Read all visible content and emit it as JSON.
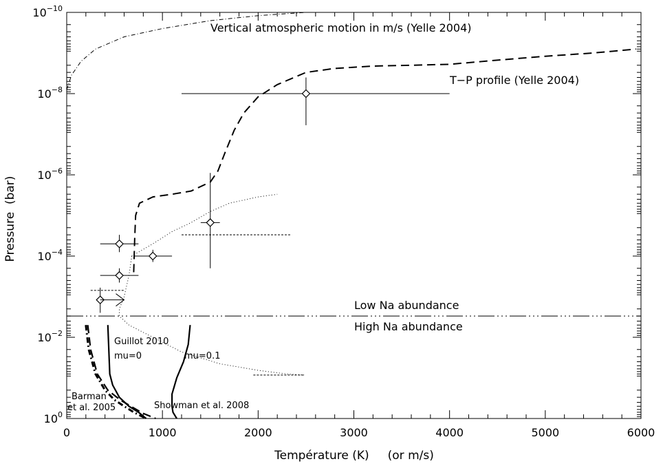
{
  "chart_data": {
    "type": "line",
    "xlabel": "Température (K)     (or m/s)",
    "ylabel": "Pressure  (bar)",
    "xlim": [
      0,
      6000
    ],
    "ylim": [
      1e-10,
      1
    ],
    "y_scale": "log",
    "y_inverted": true,
    "grid": false,
    "x_ticks": [
      "0",
      "1000",
      "2000",
      "3000",
      "4000",
      "5000",
      "6000"
    ],
    "y_ticks": [
      {
        "base": "10",
        "exp": "−10",
        "value": 1e-10
      },
      {
        "base": "10",
        "exp": "−8",
        "value": 1e-08
      },
      {
        "base": "10",
        "exp": "−6",
        "value": 1e-06
      },
      {
        "base": "10",
        "exp": "−4",
        "value": 0.0001
      },
      {
        "base": "10",
        "exp": "−2",
        "value": 0.01
      },
      {
        "base": "10",
        "exp": "0",
        "value": 1
      }
    ],
    "annotations": {
      "vertical_motion": "Vertical atmospheric motion in m/s (Yelle 2004)",
      "tp_profile": "T−P profile (Yelle 2004)",
      "low_na": "Low Na abundance",
      "high_na": "High Na abundance",
      "guillot": "Guillot 2010",
      "mu0": "mu=0",
      "mu01": "mu=0.1",
      "barman_1": "Barman",
      "barman_2": "et al. 2005",
      "showman": "Showman et al. 2008"
    },
    "series": [
      {
        "key": "vertical_motion",
        "style": "dashdot-thin",
        "points": [
          [
            0,
            8e-09
          ],
          [
            50,
            3.5e-09
          ],
          [
            150,
            1.6e-09
          ],
          [
            300,
            8e-10
          ],
          [
            600,
            4e-10
          ],
          [
            1000,
            2.5e-10
          ],
          [
            1500,
            1.6e-10
          ],
          [
            2000,
            1.2e-10
          ],
          [
            2500,
            1e-10
          ]
        ]
      },
      {
        "key": "tp_profile",
        "style": "dashed",
        "points": [
          [
            700,
            0.00025
          ],
          [
            710,
            4e-05
          ],
          [
            720,
            1e-05
          ],
          [
            760,
            5e-06
          ],
          [
            900,
            3.5e-06
          ],
          [
            1100,
            3e-06
          ],
          [
            1300,
            2.5e-06
          ],
          [
            1500,
            1.5e-06
          ],
          [
            1580,
            8e-07
          ],
          [
            1650,
            3e-07
          ],
          [
            1750,
            8e-08
          ],
          [
            1850,
            3e-08
          ],
          [
            2000,
            1.2e-08
          ],
          [
            2200,
            6e-09
          ],
          [
            2500,
            3e-09
          ],
          [
            2800,
            2.4e-09
          ],
          [
            3200,
            2.1e-09
          ],
          [
            3600,
            2e-09
          ],
          [
            4000,
            1.9e-09
          ],
          [
            4500,
            1.5e-09
          ],
          [
            5000,
            1.2e-09
          ],
          [
            5500,
            1e-09
          ],
          [
            5950,
            8e-10
          ]
        ]
      },
      {
        "key": "dotted_profile",
        "style": "dotted",
        "points": [
          [
            680,
            0.0001
          ],
          [
            650,
            0.0003
          ],
          [
            600,
            0.001
          ],
          [
            550,
            0.002
          ],
          [
            550,
            0.003
          ],
          [
            650,
            0.005
          ],
          [
            900,
            0.01
          ],
          [
            1200,
            0.023
          ],
          [
            1600,
            0.045
          ],
          [
            2000,
            0.065
          ],
          [
            2300,
            0.08
          ],
          [
            2480,
            0.085
          ]
        ]
      },
      {
        "key": "dotted_upper",
        "style": "dotted",
        "points": [
          [
            680,
            0.0001
          ],
          [
            900,
            5e-05
          ],
          [
            1100,
            2.5e-05
          ],
          [
            1300,
            1.5e-05
          ],
          [
            1500,
            8e-06
          ],
          [
            1700,
            5e-06
          ],
          [
            2000,
            3.5e-06
          ],
          [
            2200,
            3e-06
          ]
        ]
      },
      {
        "key": "guillot_mu0",
        "style": "solid-thick",
        "points": [
          [
            430,
            0.005
          ],
          [
            440,
            0.02
          ],
          [
            450,
            0.08
          ],
          [
            480,
            0.15
          ],
          [
            550,
            0.3
          ],
          [
            650,
            0.5
          ],
          [
            750,
            0.7
          ],
          [
            830,
            1.0
          ]
        ]
      },
      {
        "key": "guillot_mu01",
        "style": "solid-thick",
        "points": [
          [
            1290,
            0.005
          ],
          [
            1270,
            0.015
          ],
          [
            1220,
            0.04
          ],
          [
            1150,
            0.1
          ],
          [
            1100,
            0.25
          ],
          [
            1100,
            0.5
          ],
          [
            1110,
            0.7
          ],
          [
            1150,
            1.0
          ]
        ]
      },
      {
        "key": "barman",
        "style": "dashdot-thick",
        "points": [
          [
            200,
            0.005
          ],
          [
            230,
            0.02
          ],
          [
            300,
            0.08
          ],
          [
            400,
            0.2
          ],
          [
            500,
            0.35
          ],
          [
            600,
            0.5
          ],
          [
            700,
            0.7
          ],
          [
            830,
            1.0
          ]
        ]
      },
      {
        "key": "showman",
        "style": "dashed-thick",
        "points": [
          [
            220,
            0.005
          ],
          [
            250,
            0.02
          ],
          [
            320,
            0.08
          ],
          [
            430,
            0.2
          ],
          [
            560,
            0.35
          ],
          [
            700,
            0.55
          ],
          [
            800,
            0.75
          ],
          [
            930,
            1.0
          ]
        ]
      }
    ],
    "hlines": [
      {
        "key": "na_boundary",
        "style": "long-dashdot",
        "y": 0.003,
        "x": [
          0,
          6000
        ]
      },
      {
        "key": "dotted_top",
        "style": "short-dash",
        "y": 3e-05,
        "x": [
          1200,
          2350
        ]
      },
      {
        "key": "dotted_bottom",
        "style": "short-dash",
        "y": 0.085,
        "x": [
          1950,
          2480
        ]
      },
      {
        "key": "dotted_mid",
        "style": "short-dash",
        "y": 0.0007,
        "x": [
          250,
          600
        ]
      }
    ],
    "points": [
      {
        "x": 2500,
        "y": 1e-08,
        "xerr": [
          1200,
          4000
        ],
        "yerr": [
          4e-09,
          6e-08
        ]
      },
      {
        "x": 1500,
        "y": 1.5e-05,
        "xerr": [
          1400,
          1600
        ],
        "yerr": [
          9e-07,
          0.0002
        ]
      },
      {
        "x": 550,
        "y": 5e-05,
        "xerr": [
          350,
          750
        ],
        "yerr": [
          3e-05,
          8e-05
        ]
      },
      {
        "x": 900,
        "y": 0.0001,
        "xerr": [
          700,
          1100
        ],
        "yerr": [
          7e-05,
          0.00014
        ]
      },
      {
        "x": 550,
        "y": 0.0003,
        "xerr": [
          350,
          750
        ],
        "yerr": [
          0.0002,
          0.00045
        ]
      },
      {
        "x": 350,
        "y": 0.0012,
        "xerr": [
          350,
          350
        ],
        "yerr": [
          0.0006,
          0.0025
        ]
      }
    ],
    "arrow": {
      "from": [
        350,
        0.0012
      ],
      "to": [
        600,
        0.0012
      ]
    }
  }
}
